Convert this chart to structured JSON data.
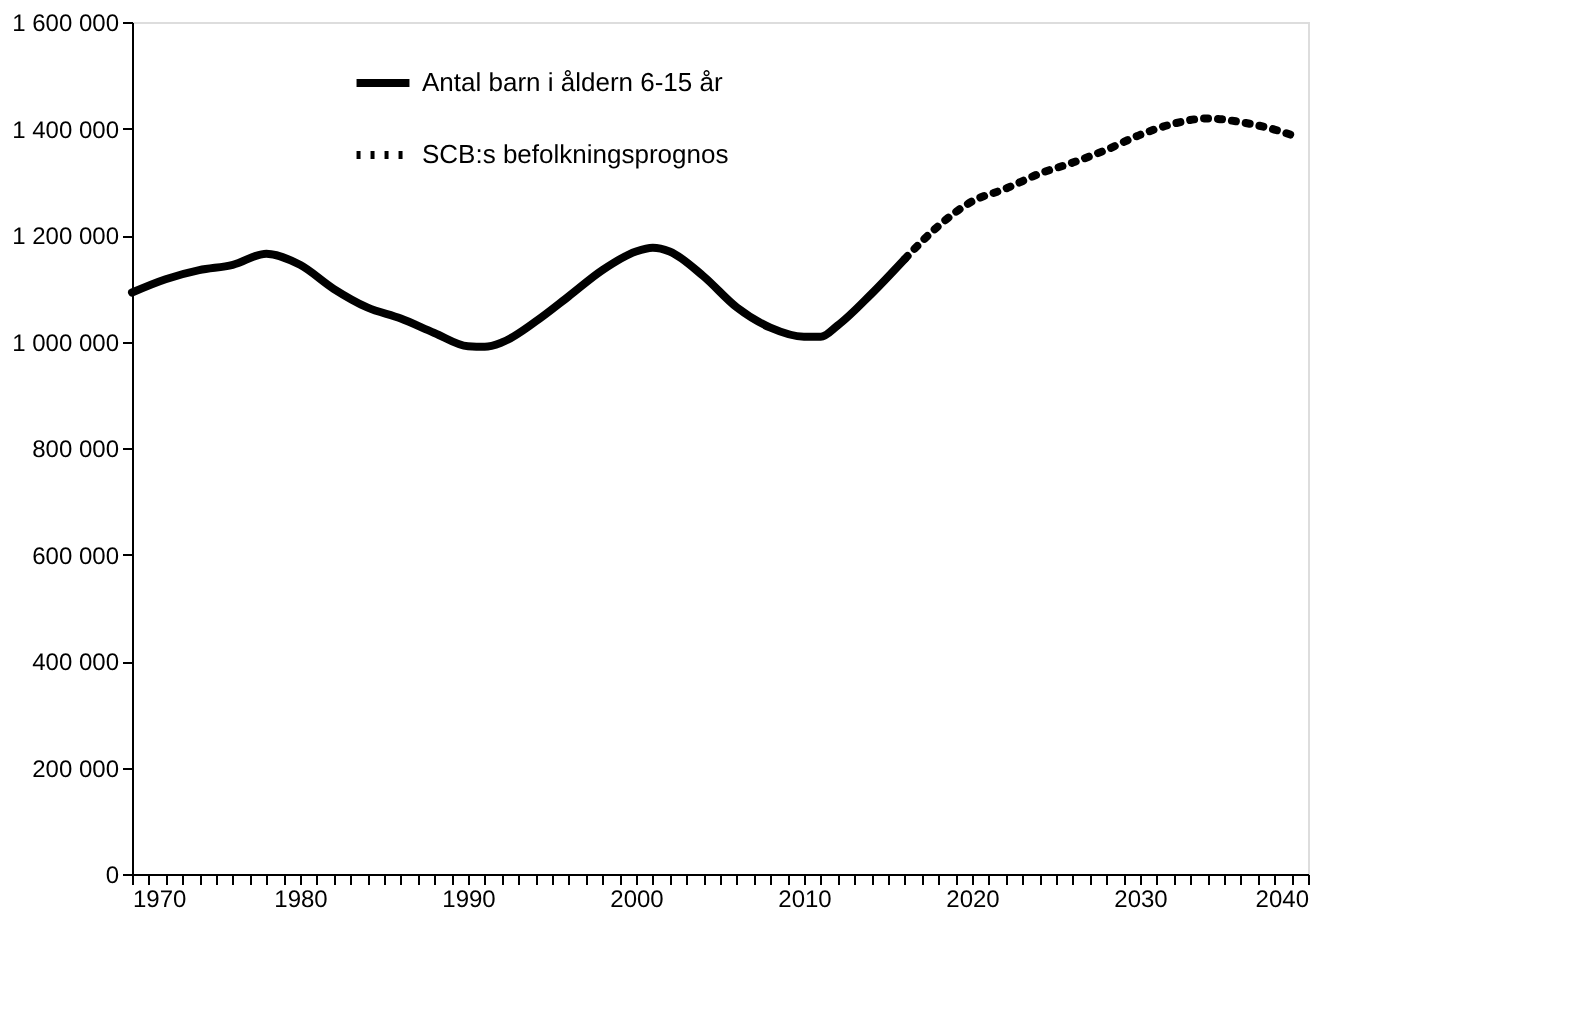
{
  "chart_data": {
    "type": "line",
    "xlim": [
      1970,
      2040
    ],
    "ylim": [
      0,
      1600000
    ],
    "xticks": [
      1970,
      {
        "value": 1971,
        "label": null
      },
      {
        "value": 1972,
        "label": null
      },
      {
        "value": 1973,
        "label": null
      },
      {
        "value": 1974,
        "label": null
      },
      {
        "value": 1975,
        "label": null
      },
      {
        "value": 1976,
        "label": null
      },
      {
        "value": 1977,
        "label": null
      },
      {
        "value": 1978,
        "label": null
      },
      {
        "value": 1979,
        "label": null
      },
      1980,
      {
        "value": 1981,
        "label": null
      },
      {
        "value": 1982,
        "label": null
      },
      {
        "value": 1983,
        "label": null
      },
      {
        "value": 1984,
        "label": null
      },
      {
        "value": 1985,
        "label": null
      },
      {
        "value": 1986,
        "label": null
      },
      {
        "value": 1987,
        "label": null
      },
      {
        "value": 1988,
        "label": null
      },
      {
        "value": 1989,
        "label": null
      },
      1990,
      {
        "value": 1991,
        "label": null
      },
      {
        "value": 1992,
        "label": null
      },
      {
        "value": 1993,
        "label": null
      },
      {
        "value": 1994,
        "label": null
      },
      {
        "value": 1995,
        "label": null
      },
      {
        "value": 1996,
        "label": null
      },
      {
        "value": 1997,
        "label": null
      },
      {
        "value": 1998,
        "label": null
      },
      {
        "value": 1999,
        "label": null
      },
      2000,
      {
        "value": 2001,
        "label": null
      },
      {
        "value": 2002,
        "label": null
      },
      {
        "value": 2003,
        "label": null
      },
      {
        "value": 2004,
        "label": null
      },
      {
        "value": 2005,
        "label": null
      },
      {
        "value": 2006,
        "label": null
      },
      {
        "value": 2007,
        "label": null
      },
      {
        "value": 2008,
        "label": null
      },
      {
        "value": 2009,
        "label": null
      },
      2010,
      {
        "value": 2011,
        "label": null
      },
      {
        "value": 2012,
        "label": null
      },
      {
        "value": 2013,
        "label": null
      },
      {
        "value": 2014,
        "label": null
      },
      {
        "value": 2015,
        "label": null
      },
      {
        "value": 2016,
        "label": null
      },
      {
        "value": 2017,
        "label": null
      },
      {
        "value": 2018,
        "label": null
      },
      {
        "value": 2019,
        "label": null
      },
      2020,
      {
        "value": 2021,
        "label": null
      },
      {
        "value": 2022,
        "label": null
      },
      {
        "value": 2023,
        "label": null
      },
      {
        "value": 2024,
        "label": null
      },
      {
        "value": 2025,
        "label": null
      },
      {
        "value": 2026,
        "label": null
      },
      {
        "value": 2027,
        "label": null
      },
      {
        "value": 2028,
        "label": null
      },
      {
        "value": 2029,
        "label": null
      },
      2030,
      {
        "value": 2031,
        "label": null
      },
      {
        "value": 2032,
        "label": null
      },
      {
        "value": 2033,
        "label": null
      },
      {
        "value": 2034,
        "label": null
      },
      {
        "value": 2035,
        "label": null
      },
      {
        "value": 2036,
        "label": null
      },
      {
        "value": 2037,
        "label": null
      },
      {
        "value": 2038,
        "label": null
      },
      {
        "value": 2039,
        "label": null
      },
      2040
    ],
    "yticks": [
      0,
      {
        "value": 200000,
        "label": "200 000"
      },
      {
        "value": 400000,
        "label": "400 000"
      },
      {
        "value": 600000,
        "label": "600 000"
      },
      {
        "value": 800000,
        "label": "800 000"
      },
      {
        "value": 1000000,
        "label": "1 000 000"
      },
      {
        "value": 1200000,
        "label": "1 200 000"
      },
      {
        "value": 1400000,
        "label": "1 400 000"
      },
      {
        "value": 1600000,
        "label": "1 600 000"
      }
    ],
    "grid": false,
    "legend": "top left",
    "series": [
      {
        "name": "Antal barn i åldern 6-15 år",
        "color": "#000000",
        "line_style": "solid",
        "x": [
          1970,
          1972,
          1974,
          1976,
          1978,
          1980,
          1982,
          1984,
          1986,
          1988,
          1990,
          1991,
          1992,
          1994,
          1996,
          1998,
          2000,
          2001,
          2002,
          2004,
          2006,
          2008,
          2010,
          2011,
          2012,
          2014,
          2016
        ],
        "values": [
          1092000,
          1117000,
          1134000,
          1144000,
          1165000,
          1144000,
          1099000,
          1064000,
          1043000,
          1016000,
          991000,
          990000,
          998000,
          1037000,
          1085000,
          1134000,
          1169000,
          1176000,
          1169000,
          1123000,
          1064000,
          1026000,
          1009000,
          1009000,
          1030000,
          1089000,
          1155000
        ]
      },
      {
        "name": "SCB:s befolkningsprognos",
        "color": "#000000",
        "line_style": "dotted",
        "x": [
          2016,
          2018,
          2020,
          2022,
          2024,
          2026,
          2028,
          2030,
          2032,
          2034,
          2036,
          2038,
          2039
        ],
        "values": [
          1155000,
          1217000,
          1263000,
          1287000,
          1315000,
          1336000,
          1360000,
          1388000,
          1409000,
          1419000,
          1412000,
          1398000,
          1388000
        ]
      }
    ]
  }
}
